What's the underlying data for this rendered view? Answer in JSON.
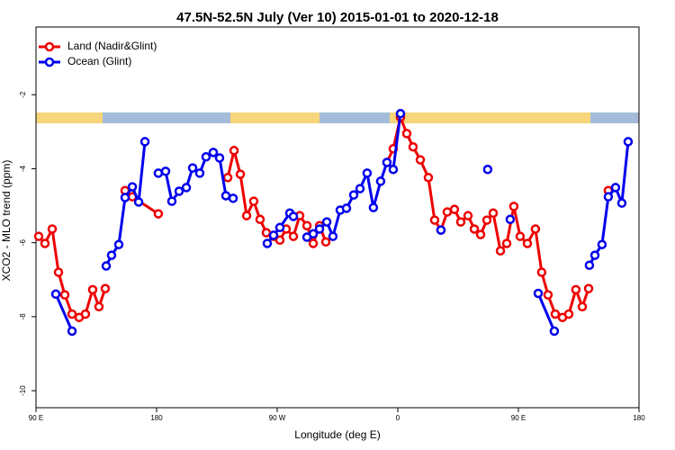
{
  "chart_data": {
    "type": "line",
    "title": "47.5N-52.5N July (Ver 10)   2015-01-01 to 2020-12-18",
    "x_label": "Longitude (deg E)",
    "y_label": "XCO2 - MLO trend (ppm)",
    "xlim": [
      90,
      540
    ],
    "ylim": [
      -10.46,
      -0.17
    ],
    "xticks": [
      {
        "value": 90,
        "label": "90 E"
      },
      180,
      {
        "value": 270,
        "label": "90 W"
      },
      {
        "value": 360,
        "label": "0"
      },
      {
        "value": 450,
        "label": "90 E"
      },
      {
        "value": 540,
        "label": "180"
      }
    ],
    "yticks": [
      -2,
      -4,
      -6,
      -8,
      -10
    ],
    "legend": "top-left",
    "series": [
      {
        "name": "Land (Nadir&Glint)",
        "color": "#ee0000",
        "x": [
          92.0,
          96.7,
          102.1,
          106.8,
          111.5,
          116.9,
          122.2,
          126.9,
          132.3,
          137.0,
          141.7,
          null,
          156.5,
          161.9,
          181.3,
          null,
          233.1,
          237.8,
          242.5,
          247.2,
          252.5,
          257.2,
          261.9,
          267.3,
          272.0,
          276.7,
          282.1,
          286.8,
          292.2,
          296.9,
          301.6,
          306.3,
          null,
          351.9,
          356.6,
          362.0,
          366.7,
          371.4,
          376.8,
          382.8,
          387.5,
          392.2,
          396.9,
          402.3,
          407.0,
          412.4,
          417.1,
          421.8,
          426.5,
          431.2,
          436.6,
          441.3,
          446.6,
          451.3,
          456.7,
          462.7,
          467.4,
          472.1,
          477.5,
          482.9,
          487.6,
          492.9,
          497.7,
          502.4,
          null,
          517.1
        ],
        "values": [
          -5.83,
          -6.02,
          -5.63,
          -6.8,
          -7.41,
          -7.93,
          -8.02,
          -7.93,
          -7.27,
          -7.73,
          -7.24,
          null,
          -4.59,
          -4.76,
          -5.22,
          null,
          -4.24,
          -3.51,
          -4.15,
          -5.27,
          -4.88,
          -5.37,
          -5.73,
          -5.83,
          -5.93,
          -5.63,
          -5.83,
          -5.27,
          -5.54,
          -6.02,
          -5.54,
          -5.98,
          null,
          -3.83,
          -3.46,
          -2.61,
          -3.05,
          -3.41,
          -3.76,
          -4.24,
          -5.39,
          -5.66,
          -5.17,
          -5.1,
          -5.44,
          -5.27,
          -5.63,
          -5.78,
          -5.39,
          -5.2,
          -6.22,
          -6.02,
          -5.02,
          -5.83,
          -6.02,
          -5.63,
          -6.8,
          -7.41,
          -7.93,
          -8.02,
          -7.93,
          -7.27,
          -7.73,
          -7.24,
          null,
          -4.59
        ]
      },
      {
        "name": "Ocean (Glint)",
        "color": "#0000ee",
        "x": [
          104.8,
          116.9,
          null,
          142.4,
          146.4,
          151.8,
          156.5,
          161.9,
          166.6,
          171.3,
          null,
          181.3,
          186.7,
          191.4,
          196.8,
          202.2,
          206.9,
          212.2,
          216.9,
          222.3,
          227.0,
          231.7,
          237.1,
          null,
          262.6,
          267.3,
          272.0,
          279.4,
          282.1,
          null,
          292.2,
          296.9,
          301.6,
          307.0,
          311.6,
          317.0,
          321.7,
          327.1,
          331.8,
          337.1,
          341.8,
          347.2,
          351.9,
          356.6,
          362.0,
          null,
          392.2,
          null,
          427.1,
          null,
          443.9,
          null,
          464.8,
          476.8,
          null,
          503.0,
          507.1,
          512.4,
          517.1,
          522.5,
          527.2,
          531.9
        ],
        "values": [
          -7.39,
          -8.39,
          null,
          -6.63,
          -6.34,
          -6.05,
          -4.78,
          -4.49,
          -4.9,
          -3.27,
          null,
          -4.12,
          -4.07,
          -4.88,
          -4.61,
          -4.51,
          -3.98,
          -4.12,
          -3.68,
          -3.56,
          -3.71,
          -4.73,
          -4.8,
          null,
          -6.02,
          -5.8,
          -5.59,
          -5.2,
          -5.29,
          null,
          -5.85,
          -5.76,
          -5.63,
          -5.44,
          -5.83,
          -5.12,
          -5.07,
          -4.71,
          -4.54,
          -4.12,
          -5.05,
          -4.34,
          -3.83,
          -4.02,
          -2.51,
          null,
          -5.66,
          null,
          -4.02,
          null,
          -5.37,
          null,
          -7.37,
          -8.39,
          null,
          -6.61,
          -6.34,
          -6.05,
          -4.76,
          -4.51,
          -4.93,
          -3.27
        ]
      }
    ]
  }
}
